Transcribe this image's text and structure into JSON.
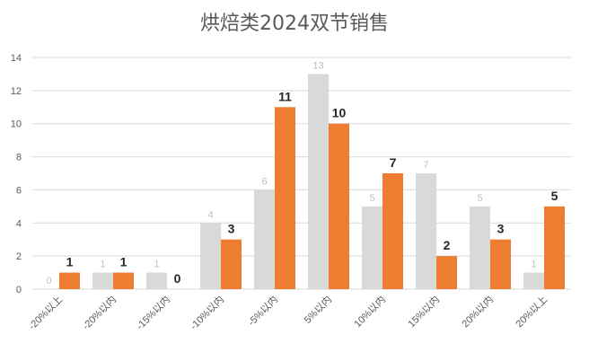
{
  "chart_data": {
    "type": "bar",
    "title": "烘焙类2024双节销售",
    "categories": [
      "-20%以上",
      "-20%以内",
      "-15%以内",
      "-10%以内",
      "-5%以内",
      "5%以内",
      "10%以内",
      "15%以内",
      "20%以内",
      "20%以上"
    ],
    "series": [
      {
        "values": [
          0,
          1,
          1,
          4,
          6,
          13,
          5,
          7,
          5,
          1
        ],
        "color": "#d9d9d9"
      },
      {
        "values": [
          1,
          1,
          0,
          3,
          11,
          10,
          7,
          2,
          3,
          5
        ],
        "color": "#ed7d31"
      }
    ],
    "yticks": [
      0,
      2,
      4,
      6,
      8,
      10,
      12,
      14
    ],
    "ylim": [
      0,
      14
    ],
    "grid": true,
    "legend": "none"
  }
}
